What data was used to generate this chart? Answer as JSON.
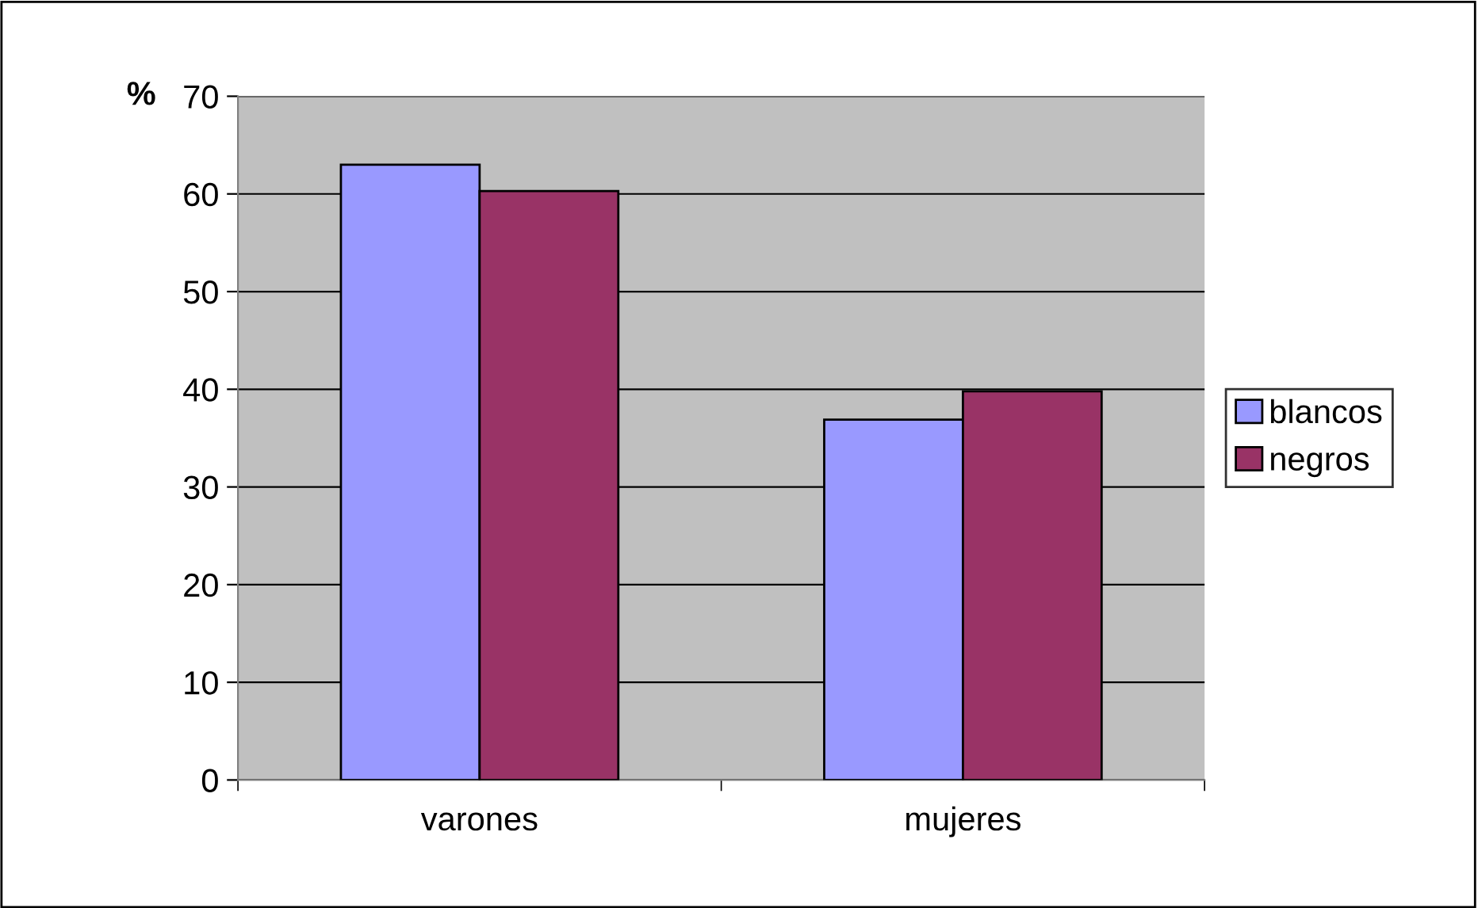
{
  "chart_data": {
    "type": "bar",
    "ylabel": "%",
    "categories": [
      "varones",
      "mujeres"
    ],
    "series": [
      {
        "name": "blancos",
        "color": "#9999ff",
        "values": [
          63.0,
          36.9
        ]
      },
      {
        "name": "negros",
        "color": "#993366",
        "values": [
          60.3,
          39.8
        ]
      }
    ],
    "ylim": [
      0,
      70
    ],
    "yticks": [
      0,
      10,
      20,
      30,
      40,
      50,
      60,
      70
    ],
    "grid": "y",
    "legend": "right"
  }
}
